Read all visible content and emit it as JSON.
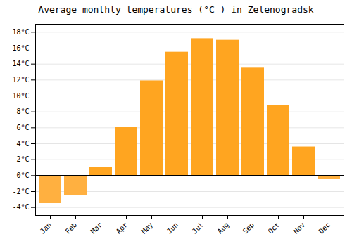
{
  "chart_data": {
    "type": "bar",
    "title": "Average monthly temperatures (°C ) in Zelenogradsk",
    "categories": [
      "Jan",
      "Feb",
      "Mar",
      "Apr",
      "May",
      "Jun",
      "Jul",
      "Aug",
      "Sep",
      "Oct",
      "Nov",
      "Dec"
    ],
    "values": [
      -3.5,
      -2.5,
      1.0,
      6.1,
      11.9,
      15.5,
      17.2,
      17.0,
      13.5,
      8.8,
      3.6,
      -0.5
    ],
    "colors": [
      "#FFB040",
      "#FFB040",
      "#FFA520",
      "#FFA520",
      "#FFA520",
      "#FFA520",
      "#FFA520",
      "#FFA520",
      "#FFA520",
      "#FFA520",
      "#FFA520",
      "#FFB040"
    ],
    "ylim": [
      -5,
      19
    ],
    "yticks": [
      {
        "value": -4,
        "label": "-4°C"
      },
      {
        "value": -2,
        "label": "-2°C"
      },
      {
        "value": 0,
        "label": "0°C"
      },
      {
        "value": 2,
        "label": "2°C"
      },
      {
        "value": 4,
        "label": "4°C"
      },
      {
        "value": 6,
        "label": "6°C"
      },
      {
        "value": 8,
        "label": "8°C"
      },
      {
        "value": 10,
        "label": "10°C"
      },
      {
        "value": 12,
        "label": "12°C"
      },
      {
        "value": 14,
        "label": "14°C"
      },
      {
        "value": 16,
        "label": "16°C"
      },
      {
        "value": 18,
        "label": "18°C"
      }
    ],
    "grid": true
  }
}
